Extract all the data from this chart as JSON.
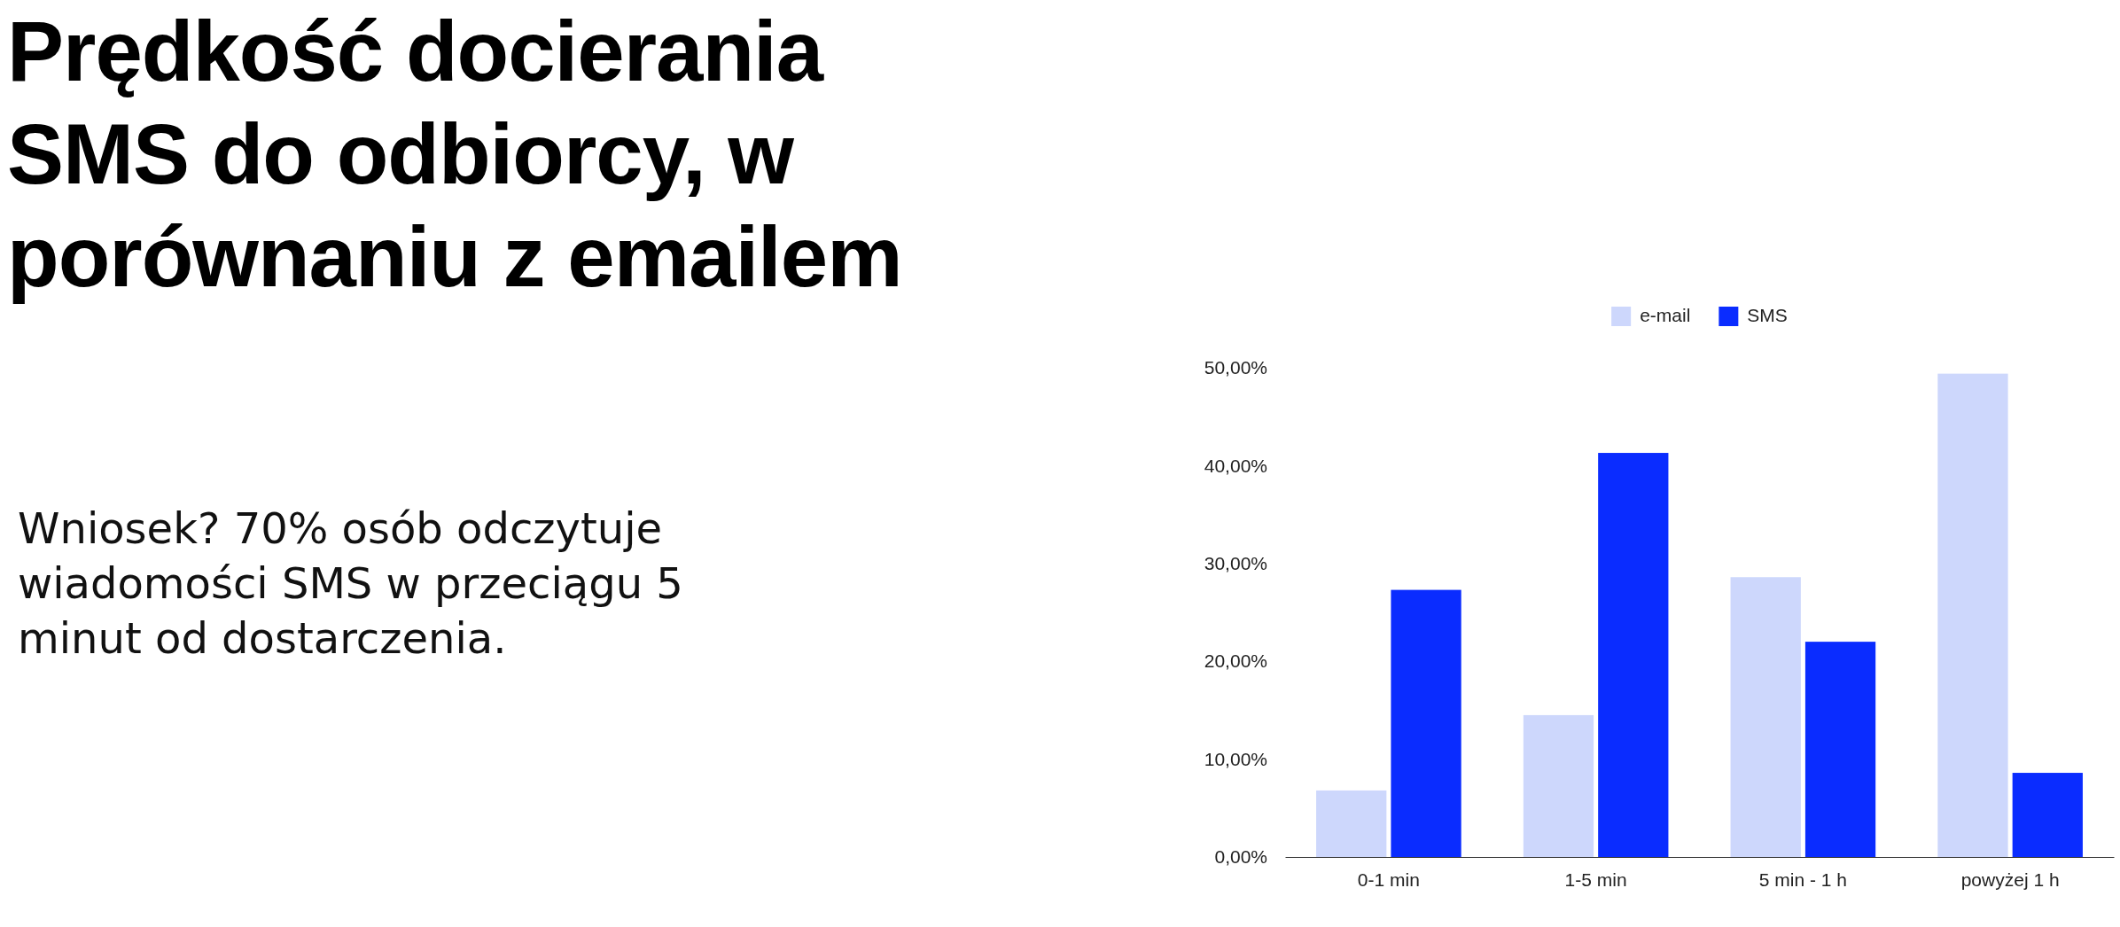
{
  "chart_data": {
    "type": "bar",
    "title": "Prędkość docierania SMS do odbiorcy, w porównaniu z emailem",
    "annotations": [
      "Wniosek? 70% osób odczytuje wiadomości SMS w przeciągu 5 minut od dostarczenia."
    ],
    "categories": [
      "0-1 min",
      "1-5 min",
      "5 min - 1 h",
      "powyżej 1 h"
    ],
    "series": [
      {
        "name": "e-mail",
        "color": "#cdd7fc",
        "values": [
          6.8,
          14.5,
          28.6,
          49.4
        ]
      },
      {
        "name": "SMS",
        "color": "#0a2cff",
        "values": [
          27.3,
          41.3,
          22.0,
          8.6
        ]
      }
    ],
    "ylim": [
      0,
      50
    ],
    "yticks": [
      {
        "value": 0,
        "label": "0,00%"
      },
      {
        "value": 10,
        "label": "10,00%"
      },
      {
        "value": 20,
        "label": "20,00%"
      },
      {
        "value": 30,
        "label": "30,00%"
      },
      {
        "value": 40,
        "label": "40,00%"
      },
      {
        "value": 50,
        "label": "50,00%"
      }
    ],
    "grid": false,
    "legend": "top"
  }
}
